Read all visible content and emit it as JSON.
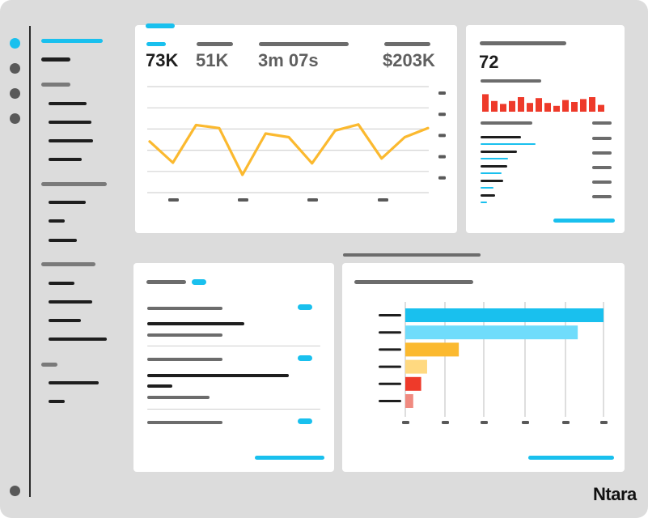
{
  "colors": {
    "frame": "#dcdcdc",
    "accent_blue": "#19c0ee",
    "light_blue": "#6fdcfb",
    "dark": "#1e1e1e",
    "gray": "#6c6c6c",
    "line_yellow": "#fbb92f",
    "orange": "#fbb92f",
    "light_orange": "#ffd980",
    "red": "#ee3a2a",
    "pink": "#f08a80"
  },
  "sidebar": {
    "icons": [
      "active-dot-icon",
      "dot-icon",
      "dot-icon",
      "dot-icon"
    ],
    "bottom_icon": "dot-icon"
  },
  "metrics": {
    "m1": "73K",
    "m2": "51K",
    "m3": "3m 07s",
    "m4": "$203K"
  },
  "score": {
    "value": "72",
    "histogram": [
      0.9,
      0.55,
      0.4,
      0.55,
      0.75,
      0.45,
      0.7,
      0.45,
      0.3,
      0.6,
      0.5,
      0.65,
      0.75,
      0.35
    ]
  },
  "line_chart": {
    "type": "line",
    "values": [
      0.55,
      0.2,
      0.82,
      0.77,
      0.0,
      0.68,
      0.62,
      0.19,
      0.73,
      0.83,
      0.27,
      0.62,
      0.77
    ]
  },
  "bar_chart": {
    "type": "bar",
    "values": [
      100,
      87,
      27,
      11,
      8,
      4
    ]
  },
  "brand": "Ntara"
}
